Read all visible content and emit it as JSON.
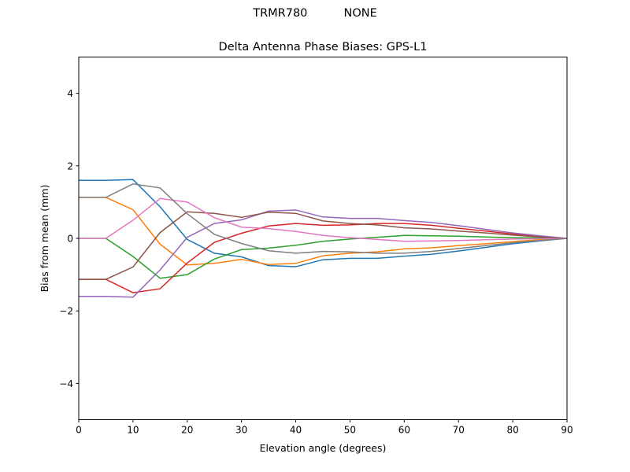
{
  "chart_data": {
    "type": "line",
    "suptitle": "TRMR780          NONE",
    "title": "Delta Antenna Phase Biases: GPS-L1",
    "xlabel": "Elevation angle (degrees)",
    "ylabel": "Bias from mean (mm)",
    "xlim": [
      0,
      90
    ],
    "ylim": [
      -5,
      5
    ],
    "xticks": [
      0,
      10,
      20,
      30,
      40,
      50,
      60,
      70,
      80,
      90
    ],
    "yticks": [
      -4,
      -2,
      0,
      2,
      4
    ],
    "ytick_labels": [
      "−4",
      "−2",
      "0",
      "2",
      "4"
    ],
    "grid": false,
    "colors": [
      "#1f77b4",
      "#ff7f0e",
      "#2ca02c",
      "#d62728",
      "#9467bd",
      "#8c564b",
      "#e377c2",
      "#7f7f7f",
      "#bcbd22",
      "#17becf"
    ],
    "x": [
      0,
      5,
      10,
      15,
      20,
      25,
      30,
      35,
      40,
      45,
      50,
      55,
      60,
      65,
      70,
      75,
      80,
      85,
      90
    ],
    "series": [
      {
        "values": [
          1.6,
          1.6,
          1.62,
          0.87,
          -0.03,
          -0.41,
          -0.51,
          -0.75,
          -0.78,
          -0.59,
          -0.55,
          -0.55,
          -0.49,
          -0.44,
          -0.35,
          -0.25,
          -0.15,
          -0.07,
          0
        ]
      },
      {
        "values": [
          1.13,
          1.13,
          0.79,
          -0.16,
          -0.73,
          -0.69,
          -0.58,
          -0.72,
          -0.69,
          -0.48,
          -0.41,
          -0.37,
          -0.29,
          -0.26,
          -0.2,
          -0.15,
          -0.09,
          -0.04,
          0
        ]
      },
      {
        "values": [
          0,
          0,
          -0.5,
          -1.1,
          -1.0,
          -0.57,
          -0.31,
          -0.27,
          -0.19,
          -0.08,
          -0.02,
          0.03,
          0.08,
          0.07,
          0.06,
          0.04,
          0.02,
          0.01,
          0
        ]
      },
      {
        "values": [
          -1.13,
          -1.13,
          -1.5,
          -1.39,
          -0.68,
          -0.11,
          0.14,
          0.34,
          0.41,
          0.36,
          0.37,
          0.41,
          0.41,
          0.36,
          0.28,
          0.2,
          0.12,
          0.06,
          0
        ]
      },
      {
        "values": [
          -1.6,
          -1.6,
          -1.62,
          -0.87,
          0.03,
          0.41,
          0.51,
          0.75,
          0.78,
          0.59,
          0.55,
          0.55,
          0.49,
          0.44,
          0.35,
          0.25,
          0.15,
          0.07,
          0
        ]
      },
      {
        "values": [
          -1.13,
          -1.13,
          -0.79,
          0.16,
          0.73,
          0.69,
          0.58,
          0.72,
          0.69,
          0.48,
          0.41,
          0.37,
          0.29,
          0.26,
          0.2,
          0.15,
          0.09,
          0.04,
          0
        ]
      },
      {
        "values": [
          0,
          0,
          0.5,
          1.1,
          1.0,
          0.57,
          0.31,
          0.27,
          0.19,
          0.08,
          0.02,
          -0.03,
          -0.08,
          -0.07,
          -0.06,
          -0.04,
          -0.02,
          -0.01,
          0
        ]
      },
      {
        "values": [
          1.13,
          1.13,
          1.5,
          1.39,
          0.68,
          0.11,
          -0.14,
          -0.34,
          -0.41,
          -0.36,
          -0.37,
          -0.41,
          -0.41,
          -0.36,
          -0.28,
          -0.2,
          -0.12,
          -0.06,
          0
        ]
      }
    ]
  }
}
